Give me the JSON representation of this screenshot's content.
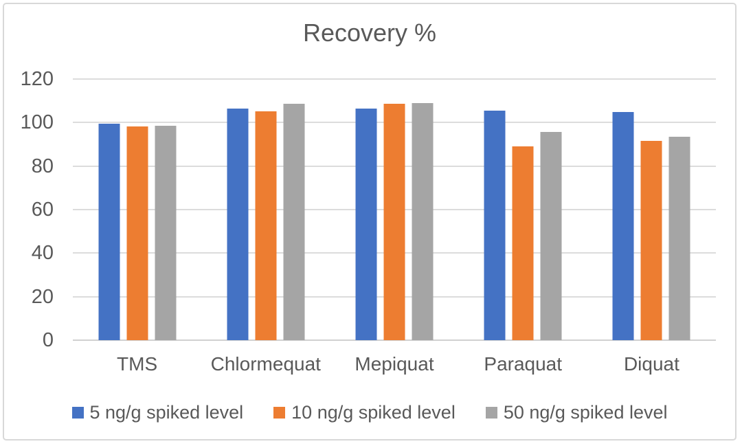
{
  "chart_data": {
    "type": "bar",
    "title": "Recovery %",
    "categories": [
      "TMS",
      "Chlormequat",
      "Mepiquat",
      "Paraquat",
      "Diquat"
    ],
    "series": [
      {
        "name": "5 ng/g spiked level",
        "color": "#4472C4",
        "values": [
          99.5,
          106.3,
          106.5,
          105.6,
          105.0
        ]
      },
      {
        "name": "10 ng/g spiked level",
        "color": "#ED7D31",
        "values": [
          98.1,
          105.2,
          108.7,
          89.0,
          91.7
        ]
      },
      {
        "name": "50 ng/g spiked level",
        "color": "#A5A5A5",
        "values": [
          98.5,
          108.6,
          109.0,
          95.7,
          93.6
        ]
      }
    ],
    "xlabel": "",
    "ylabel": "",
    "ylim": [
      0,
      120
    ],
    "yticks": [
      0,
      20,
      40,
      60,
      80,
      100,
      120
    ],
    "grid": true,
    "legend_position": "bottom",
    "style_colors": {
      "text": "#595959",
      "gridline": "#DCDCDC",
      "axis_line": "#D0D0D0",
      "frame_border": "#D8D8D8",
      "background": "#FFFFFF"
    }
  }
}
